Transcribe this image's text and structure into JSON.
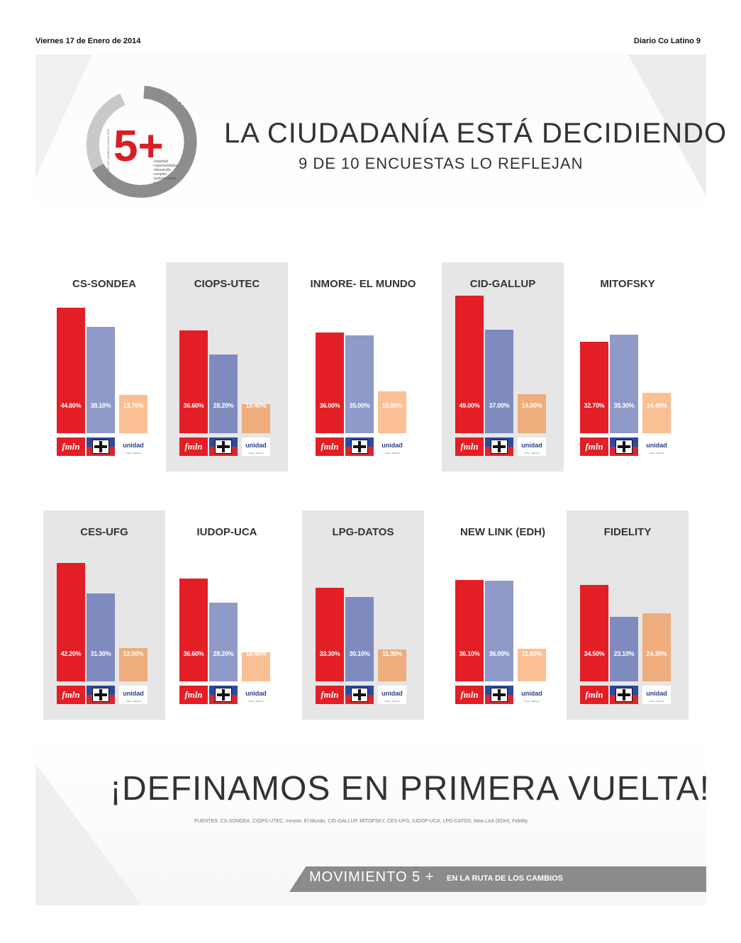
{
  "header": {
    "date": "Viernes 17 de Enero de 2014",
    "paper": "Diario Co Latino 9"
  },
  "logo": {
    "number": "5+",
    "ring_text": "MOVIMIENTO",
    "side_text": "EN LA RUTA DE LOS CAMBIOS MARCA POR",
    "items": [
      "+equidad",
      "+oportunidades",
      "+desarrollo",
      "+empleo",
      "+justicia social",
      "+..."
    ]
  },
  "title": "LA CIUDADANÍA ESTÁ DECIDIENDO",
  "subtitle": "9 DE 10 ENCUESTAS LO REFLEJAN",
  "parties": {
    "fmln": "fmln",
    "unidad": "unidad",
    "unidad_sub": "Tony + Zamora"
  },
  "colors": {
    "fmln": "#e31e24",
    "arena": "#8f9ac9",
    "unidad": "#fbbf94",
    "gray_card": "#e6e6e7",
    "footer": "#8a8b8d"
  },
  "chart_data": {
    "type": "bar",
    "series_names": [
      "FMLN",
      "ARENA",
      "UNIDAD"
    ],
    "polls": [
      {
        "name": "CS-SONDEA",
        "values": [
          44.8,
          38.1,
          13.7
        ],
        "labels": [
          "44.80%",
          "38.10%",
          "13.70%"
        ]
      },
      {
        "name": "CIOPS-UTEC",
        "values": [
          36.6,
          28.2,
          10.4
        ],
        "labels": [
          "36.60%",
          "28.20%",
          "10.40%"
        ]
      },
      {
        "name": "INMORE- EL MUNDO",
        "values": [
          36.0,
          35.0,
          15.0
        ],
        "labels": [
          "36.00%",
          "35.00%",
          "15.00%"
        ]
      },
      {
        "name": "CID-GALLUP",
        "values": [
          49.0,
          37.0,
          14.0
        ],
        "labels": [
          "49.00%",
          "37.00%",
          "14.00%"
        ]
      },
      {
        "name": "MITOFSKY",
        "values": [
          32.7,
          35.3,
          14.4
        ],
        "labels": [
          "32.70%",
          "35.30%",
          "14.40%"
        ]
      },
      {
        "name": "CES-UFG",
        "values": [
          42.2,
          31.3,
          12.0
        ],
        "labels": [
          "42.20%",
          "31.30%",
          "12.00%"
        ]
      },
      {
        "name": "IUDOP-UCA",
        "values": [
          36.6,
          28.2,
          10.4
        ],
        "labels": [
          "36.60%",
          "28.20%",
          "10.40%"
        ]
      },
      {
        "name": "LPG-DATOS",
        "values": [
          33.3,
          30.1,
          11.3
        ],
        "labels": [
          "33.30%",
          "30.10%",
          "11.30%"
        ]
      },
      {
        "name": "NEW LINK (EDH)",
        "values": [
          36.1,
          36.0,
          11.6
        ],
        "labels": [
          "36.10%",
          "36.00%",
          "11.60%"
        ]
      },
      {
        "name": "FIDELITY",
        "values": [
          34.5,
          23.1,
          24.3
        ],
        "labels": [
          "34.50%",
          "23.10%",
          "24.30%"
        ]
      }
    ]
  },
  "slogan": "¡DEFINAMOS EN PRIMERA VUELTA!",
  "sources": "FUENTES: CS-SONDEA, CIOPS-UTEC, Inmore, El Mundo, CID-GALLUP, MITOFSKY, CES-UFG, IUDOP-UCA, LPG-DATOS, New Link (EDH), Fidelity",
  "footer": {
    "left": "MOVIMIENTO 5 +",
    "right": "EN LA RUTA DE  LOS CAMBIOS"
  }
}
